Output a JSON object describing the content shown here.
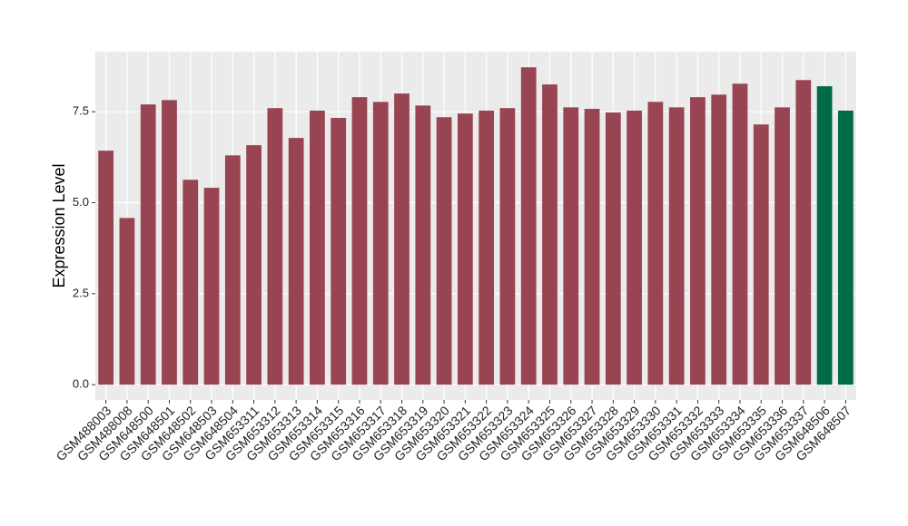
{
  "chart_data": {
    "type": "bar",
    "y_label": "Expression Level",
    "categories": [
      "GSM488003",
      "GSM488008",
      "GSM648500",
      "GSM648501",
      "GSM648502",
      "GSM648503",
      "GSM648504",
      "GSM653311",
      "GSM653312",
      "GSM653313",
      "GSM653314",
      "GSM653315",
      "GSM653316",
      "GSM653317",
      "GSM653318",
      "GSM653319",
      "GSM653320",
      "GSM653321",
      "GSM653322",
      "GSM653323",
      "GSM653324",
      "GSM653325",
      "GSM653326",
      "GSM653327",
      "GSM653328",
      "GSM653329",
      "GSM653330",
      "GSM653331",
      "GSM653332",
      "GSM653333",
      "GSM653334",
      "GSM653335",
      "GSM653336",
      "GSM653337",
      "GSM648506",
      "GSM648507"
    ],
    "values": [
      6.43,
      4.58,
      7.7,
      7.82,
      5.63,
      5.41,
      6.3,
      6.58,
      7.6,
      6.78,
      7.53,
      7.33,
      7.9,
      7.77,
      8.0,
      7.67,
      7.35,
      7.45,
      7.53,
      7.6,
      8.72,
      8.25,
      7.62,
      7.58,
      7.48,
      7.53,
      7.77,
      7.62,
      7.9,
      7.97,
      8.27,
      7.15,
      7.62,
      8.37,
      8.2,
      7.53
    ],
    "colors": [
      "#984452",
      "#984452",
      "#984452",
      "#984452",
      "#984452",
      "#984452",
      "#984452",
      "#984452",
      "#984452",
      "#984452",
      "#984452",
      "#984452",
      "#984452",
      "#984452",
      "#984452",
      "#984452",
      "#984452",
      "#984452",
      "#984452",
      "#984452",
      "#984452",
      "#984452",
      "#984452",
      "#984452",
      "#984452",
      "#984452",
      "#984452",
      "#984452",
      "#984452",
      "#984452",
      "#984452",
      "#984452",
      "#984452",
      "#984452",
      "#006b45",
      "#006b45"
    ],
    "ylim": [
      -0.42,
      9.15
    ],
    "yticks": [
      {
        "value": 0,
        "label": "0.0"
      },
      2.5,
      {
        "value": 5,
        "label": "5.0"
      },
      7.5
    ],
    "grid": true,
    "background": "#ebebeb"
  }
}
